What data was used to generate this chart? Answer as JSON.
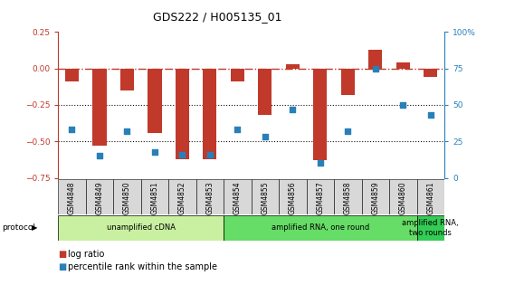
{
  "title": "GDS222 / H005135_01",
  "samples": [
    "GSM4848",
    "GSM4849",
    "GSM4850",
    "GSM4851",
    "GSM4852",
    "GSM4853",
    "GSM4854",
    "GSM4855",
    "GSM4856",
    "GSM4857",
    "GSM4858",
    "GSM4859",
    "GSM4860",
    "GSM4861"
  ],
  "log_ratio": [
    -0.09,
    -0.53,
    -0.15,
    -0.44,
    -0.62,
    -0.62,
    -0.09,
    -0.32,
    0.03,
    -0.63,
    -0.18,
    0.13,
    0.04,
    -0.06
  ],
  "percentile_rank": [
    33,
    15,
    32,
    18,
    16,
    16,
    33,
    28,
    47,
    10,
    32,
    75,
    50,
    43
  ],
  "ylim_left": [
    -0.75,
    0.25
  ],
  "ylim_right": [
    0,
    100
  ],
  "yticks_left": [
    -0.75,
    -0.5,
    -0.25,
    0,
    0.25
  ],
  "yticks_right": [
    0,
    25,
    50,
    75,
    100
  ],
  "bar_color": "#c0392b",
  "dot_color": "#2980b9",
  "hline_color": "#c0392b",
  "dotted_line_color": "#111111",
  "bg_color": "#ffffff",
  "tick_label_bg": "#d8d8d8",
  "protocol_groups": [
    {
      "label": "unamplified cDNA",
      "start": 0,
      "end": 5,
      "color": "#c8f0a0"
    },
    {
      "label": "amplified RNA, one round",
      "start": 6,
      "end": 12,
      "color": "#66dd66"
    },
    {
      "label": "amplified RNA,\ntwo rounds",
      "start": 13,
      "end": 13,
      "color": "#33cc55"
    }
  ],
  "protocol_label": "protocol",
  "legend_log": "log ratio",
  "legend_pct": "percentile rank within the sample",
  "title_fontsize": 9,
  "axis_fontsize": 6.5,
  "legend_fontsize": 7
}
